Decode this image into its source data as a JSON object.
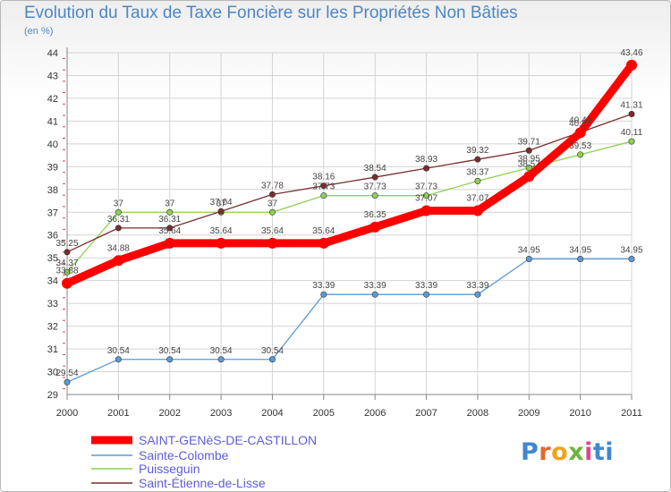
{
  "chart_data": {
    "type": "line",
    "title": "Evolution du Taux de Taxe Foncière sur les Propriétés Non Bâties",
    "ylabel": "(en %)",
    "xlabel": "",
    "x": [
      "2000",
      "2001",
      "2002",
      "2003",
      "2004",
      "2005",
      "2006",
      "2007",
      "2008",
      "2009",
      "2010",
      "2011"
    ],
    "ylim": [
      29,
      44
    ],
    "yticks": [
      "29",
      "30",
      "31",
      "32",
      "33",
      "34",
      "35",
      "36",
      "37",
      "38",
      "39",
      "40",
      "41",
      "42",
      "43",
      "44"
    ],
    "series": [
      {
        "name": "SAINT-GENèS-DE-CASTILLON",
        "color": "#ff0000",
        "values": [
          33.88,
          34.88,
          35.64,
          35.64,
          35.64,
          35.64,
          36.35,
          37.07,
          37.07,
          38.57,
          40.49,
          43.46
        ],
        "labels": [
          "33.88",
          "34.88",
          "35.64",
          "35.64",
          "35.64",
          "35.64",
          "36.35",
          "37.07",
          "37.07",
          "38.57",
          "40.49",
          "43.46"
        ]
      },
      {
        "name": "Sainte-Colombe",
        "color": "#5b9bd5",
        "values": [
          29.54,
          30.54,
          30.54,
          30.54,
          30.54,
          33.39,
          33.39,
          33.39,
          33.39,
          34.95,
          34.95,
          34.95
        ],
        "labels": [
          "29.54",
          "30.54",
          "30.54",
          "30.54",
          "30.54",
          "33.39",
          "33.39",
          "33.39",
          "33.39",
          "34.95",
          "34.95",
          "34.95"
        ]
      },
      {
        "name": "Puisseguin",
        "color": "#8fd14f",
        "values": [
          34.37,
          37,
          37,
          37,
          37,
          37.73,
          37.73,
          37.73,
          38.37,
          38.95,
          39.53,
          40.11
        ],
        "labels": [
          "34.37",
          "37",
          "37",
          "37",
          "37",
          "37.73",
          "37.73",
          "37.73",
          "38.37",
          "38.95",
          "39.53",
          "40.11"
        ]
      },
      {
        "name": "Saint-Étienne-de-Lisse",
        "color": "#7a2e2e",
        "values": [
          35.25,
          36.31,
          36.31,
          37.04,
          37.78,
          38.16,
          38.54,
          38.93,
          39.32,
          39.71,
          40.51,
          41.31
        ],
        "labels": [
          "35.25",
          "36.31",
          "36.31",
          "37.04",
          "37.78",
          "38.16",
          "38.54",
          "38.93",
          "39.32",
          "39.71",
          "40.51",
          "41.31"
        ]
      }
    ]
  },
  "logo": {
    "letters": [
      "P",
      "r",
      "o",
      "x",
      "i",
      "t",
      "i"
    ]
  }
}
